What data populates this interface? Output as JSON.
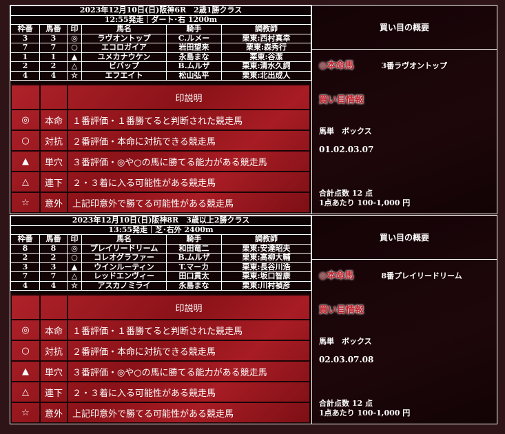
{
  "races": [
    {
      "title": "2023年12月10日(日)阪神6R　2歳1勝クラス",
      "subtitle": "12:55発走｜ダート･右 1200m",
      "headers": [
        "枠番",
        "馬番",
        "印",
        "馬名",
        "騎手",
        "調教師"
      ],
      "rows": [
        [
          "3",
          "3",
          "◎",
          "ラヴオントップ",
          "C.ルメー",
          "栗東:西村真幸"
        ],
        [
          "7",
          "7",
          "○",
          "エコロガイア",
          "岩田望来",
          "栗東:森秀行"
        ],
        [
          "1",
          "1",
          "▲",
          "ユメカナウケン",
          "永島まな",
          "栗東:谷潔"
        ],
        [
          "2",
          "2",
          "△",
          "ビバップ",
          "B.ムルザ",
          "栗東:清水久詞"
        ],
        [
          "4",
          "4",
          "☆",
          "エフエイト",
          "松山弘平",
          "栗東:北出成人"
        ]
      ],
      "summary": {
        "header": "買い目の概要",
        "honmei_label": "◎本命馬",
        "honmei_value": "3番ラヴオントップ",
        "info_label": "買い目情報",
        "bet_type": "馬単　ボックス",
        "numbers": "01.02.03.07",
        "total": "合計点数 12 点",
        "per_point": "1点あたり 100-1,000 円"
      }
    },
    {
      "title": "2023年12月10日(日)阪神8R　3歳以上2勝クラス",
      "subtitle": "13:55発走｜芝･右外 2400m",
      "headers": [
        "枠番",
        "馬番",
        "印",
        "馬名",
        "騎手",
        "調教師"
      ],
      "rows": [
        [
          "8",
          "8",
          "◎",
          "プレイリードリーム",
          "和田竜二",
          "栗東:安達昭夫"
        ],
        [
          "2",
          "2",
          "○",
          "コレオグラファー",
          "B.ムルザ",
          "栗東:高柳大輔"
        ],
        [
          "3",
          "3",
          "▲",
          "ウインルーティン",
          "T.マーカ",
          "栗東:長谷川浩"
        ],
        [
          "7",
          "7",
          "△",
          "レッドエンヴィー",
          "田口貫太",
          "栗東:坂口智康"
        ],
        [
          "4",
          "4",
          "☆",
          "アスカノミライ",
          "永島まな",
          "栗東:川村禎彦"
        ]
      ],
      "summary": {
        "header": "買い目の概要",
        "honmei_label": "◎本命馬",
        "honmei_value": "8番プレイリードリーム",
        "info_label": "買い目情報",
        "bet_type": "馬単　ボックス",
        "numbers": "02.03.07.08",
        "total": "合計点数 12 点",
        "per_point": "1点あたり 100-1,000 円"
      }
    }
  ],
  "legend": {
    "header": "印説明",
    "rows": [
      [
        "◎",
        "本命",
        "１番評価・１番勝てると判断された競走馬"
      ],
      [
        "○",
        "対抗",
        "２番評価・本命に対抗できる競走馬"
      ],
      [
        "▲",
        "単穴",
        "３番評価・◎や○の馬に勝てる能力がある競走馬"
      ],
      [
        "△",
        "連下",
        "２・３着に入る可能性がある競走馬"
      ],
      [
        "☆",
        "意外",
        "上記印意外で勝てる可能性がある競走馬"
      ]
    ]
  },
  "colors": {
    "legend_red": "#a01820",
    "panel_bg": "#120305",
    "page_bg": "#2e1416"
  }
}
